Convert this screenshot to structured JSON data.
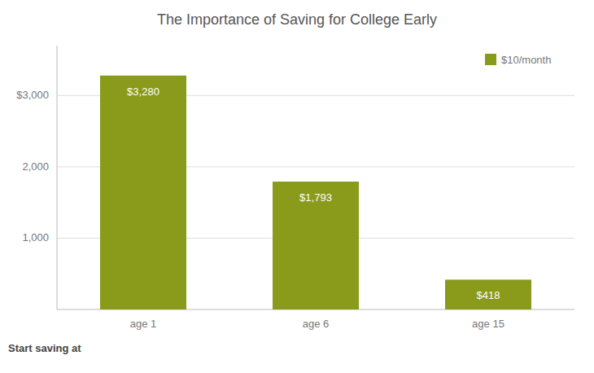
{
  "chart_data": {
    "type": "bar",
    "title": "The Importance of Saving for College Early",
    "categories": [
      "age 1",
      "age 6",
      "age 15"
    ],
    "series": [
      {
        "name": "$10/month",
        "color": "#8a9a1a",
        "values": [
          3280,
          1793,
          418
        ],
        "value_labels": [
          "$3,280",
          "$1,793",
          "$418"
        ]
      }
    ],
    "xlabel": "Start saving at",
    "ylim": [
      0,
      3700
    ],
    "yticks": [
      {
        "value": 1000,
        "label": "1,000"
      },
      {
        "value": 2000,
        "label": "2,000"
      },
      {
        "value": 3000,
        "label": "$3,000"
      }
    ],
    "grid": true,
    "legend": "upper right",
    "data_labels": true
  }
}
